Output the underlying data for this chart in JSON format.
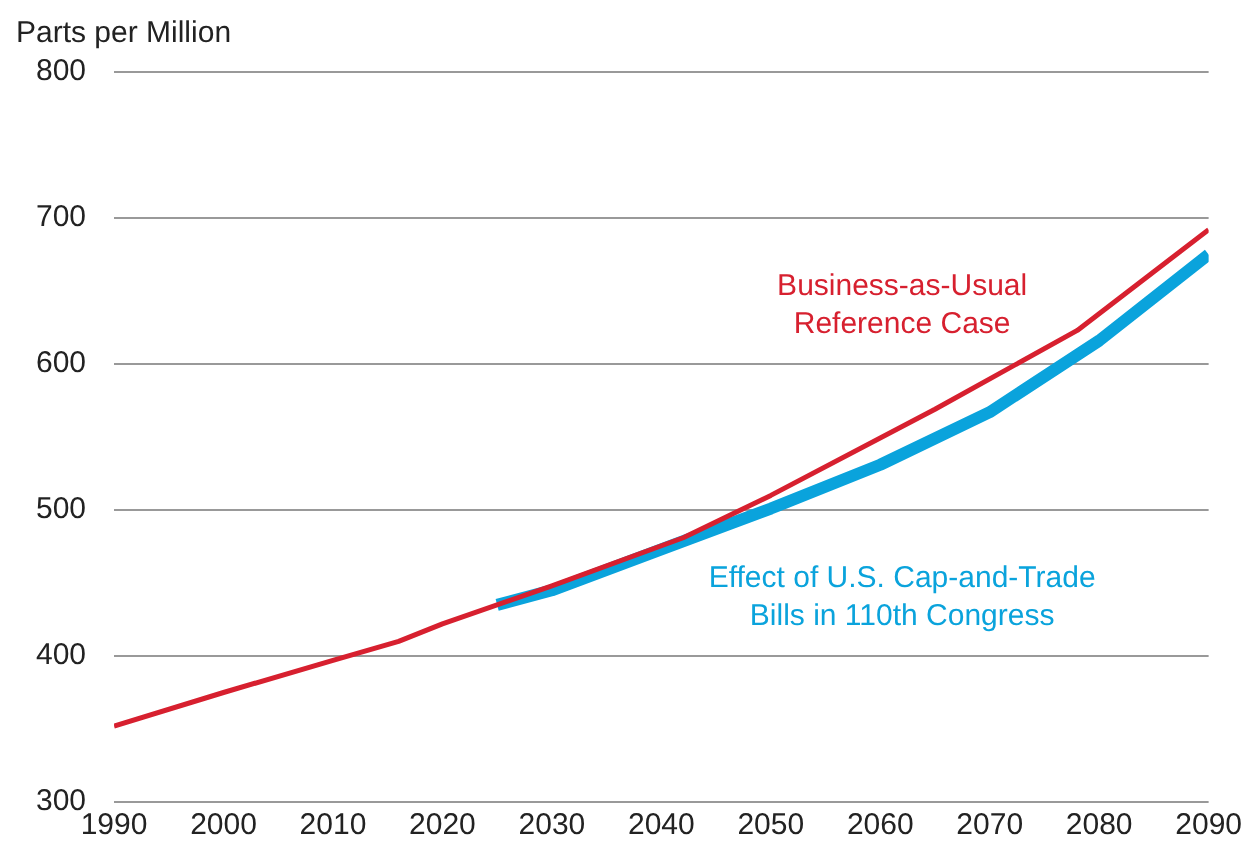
{
  "chart_data": {
    "type": "line",
    "ylabel": "Parts per Million",
    "xlim": [
      1990,
      2090
    ],
    "xticks": [
      1990,
      2000,
      2010,
      2020,
      2030,
      2040,
      2050,
      2060,
      2070,
      2080,
      2090
    ],
    "ylim": [
      300,
      800
    ],
    "yticks": [
      300,
      400,
      500,
      600,
      700,
      800
    ],
    "grid": "y",
    "legend": false,
    "marker": "none",
    "line_style": "solid",
    "series": [
      {
        "name": "Business-as-Usual Reference Case",
        "color": "#d7202f",
        "x": [
          1990,
          2000,
          2010,
          2016,
          2020,
          2030,
          2042,
          2050,
          2065,
          2078,
          2090
        ],
        "values": [
          352,
          375,
          397,
          410,
          422,
          448,
          481,
          510,
          569,
          623,
          692
        ]
      },
      {
        "name": "Effect of U.S. Cap-and-Trade Bills in 110th Congress",
        "color": "#0aa3dc",
        "x": [
          2025,
          2030,
          2040,
          2050,
          2060,
          2070,
          2080,
          2090
        ],
        "values": [
          435,
          445,
          473,
          501,
          531,
          567,
          616,
          675
        ]
      }
    ]
  }
}
